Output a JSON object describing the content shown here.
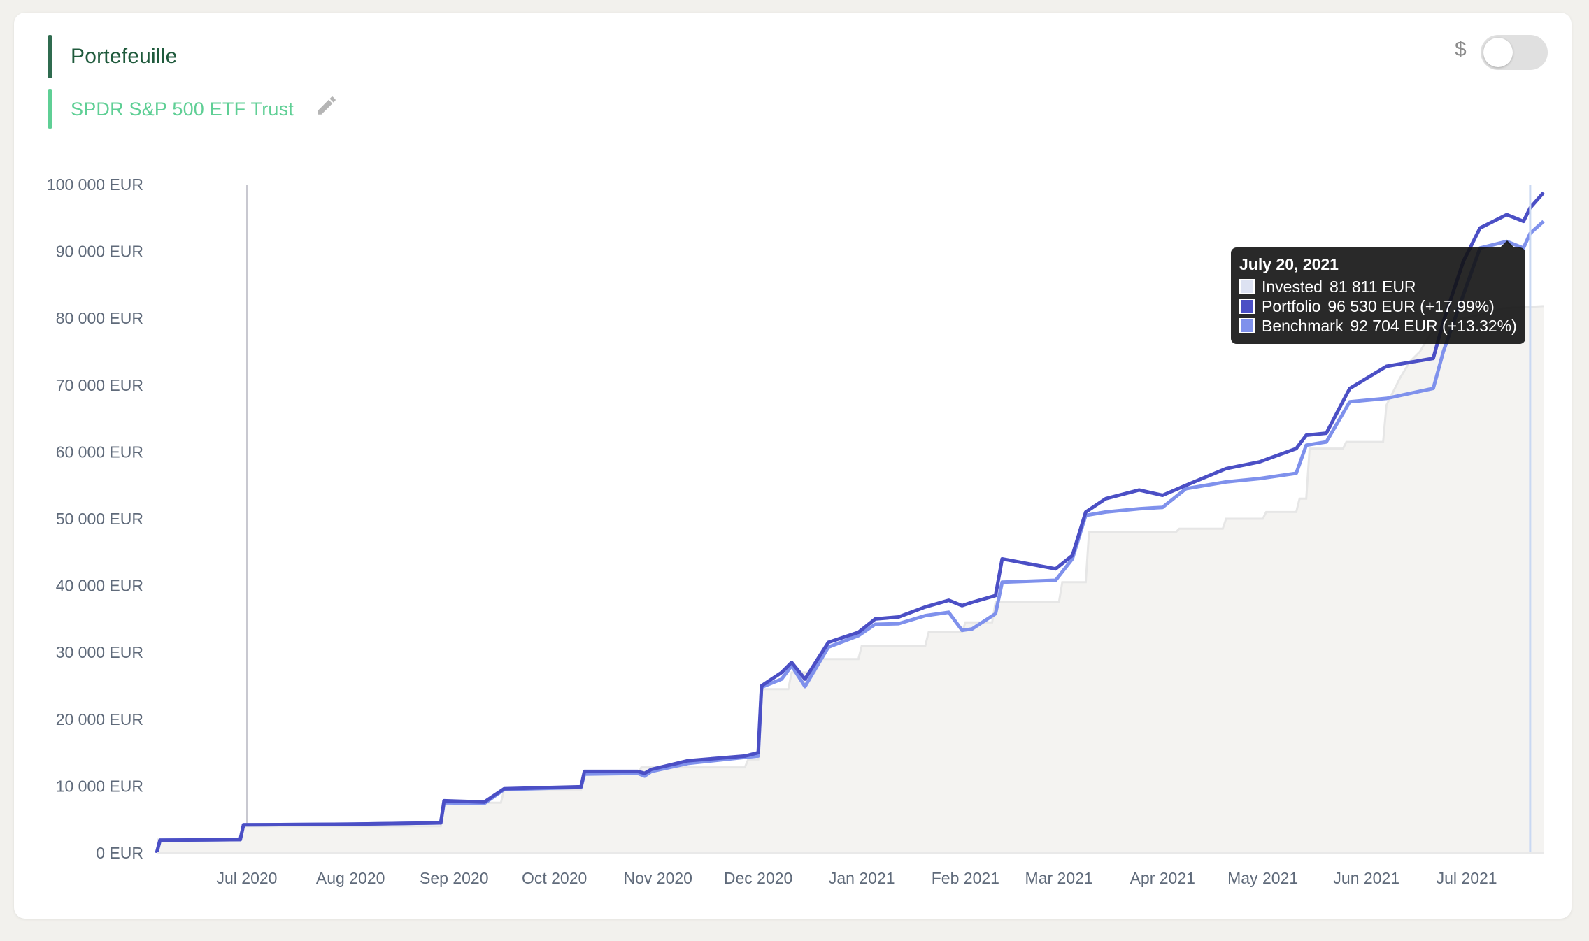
{
  "legend": {
    "portfolio_label": "Portefeuille",
    "benchmark_label": "SPDR S&P 500 ETF Trust",
    "portfolio_color": "#2f6b4f",
    "benchmark_color": "#5fcf95",
    "edit_icon": "pencil-icon"
  },
  "currency_toggle": {
    "symbol": "$",
    "enabled": false
  },
  "tooltip": {
    "date": "July 20, 2021",
    "rows": [
      {
        "name": "Invested",
        "value": "81 811 EUR",
        "color": "#dde2f2"
      },
      {
        "name": "Portfolio",
        "value": "96 530 EUR (+17.99%)",
        "color": "#4b4fc5"
      },
      {
        "name": "Benchmark",
        "value": "92 704 EUR (+13.32%)",
        "color": "#7f91ec"
      }
    ]
  },
  "chart_data": {
    "type": "line",
    "x_type": "date",
    "y_tick_labels": [
      "0 EUR",
      "10 000 EUR",
      "20 000 EUR",
      "30 000 EUR",
      "40 000 EUR",
      "50 000 EUR",
      "60 000 EUR",
      "70 000 EUR",
      "80 000 EUR",
      "90 000 EUR",
      "100 000 EUR"
    ],
    "y_ticks": [
      0,
      10000,
      20000,
      30000,
      40000,
      50000,
      60000,
      70000,
      80000,
      90000,
      100000
    ],
    "ylim": [
      0,
      100000
    ],
    "xlim": [
      "2020-06-04",
      "2021-07-24"
    ],
    "x_ticks": [
      "2020-07-01",
      "2020-08-01",
      "2020-09-01",
      "2020-10-01",
      "2020-11-01",
      "2020-12-01",
      "2021-01-01",
      "2021-02-01",
      "2021-03-01",
      "2021-04-01",
      "2021-05-01",
      "2021-06-01",
      "2021-07-01"
    ],
    "x_tick_labels": [
      "Jul 2020",
      "Aug 2020",
      "Sep 2020",
      "Oct 2020",
      "Nov 2020",
      "Dec 2020",
      "Jan 2021",
      "Feb 2021",
      "Mar 2021",
      "Apr 2021",
      "May 2021",
      "Jun 2021",
      "Jul 2021"
    ],
    "hover_date": "2021-07-20",
    "grid": false,
    "series": [
      {
        "name": "Invested",
        "style": "area",
        "color": "#e6e6e6",
        "fill": "#f4f3f1",
        "points": [
          [
            "2020-06-04",
            2000
          ],
          [
            "2020-06-29",
            2000
          ],
          [
            "2020-06-30",
            4000
          ],
          [
            "2020-08-28",
            4000
          ],
          [
            "2020-08-29",
            7500
          ],
          [
            "2020-09-15",
            7500
          ],
          [
            "2020-09-16",
            9500
          ],
          [
            "2020-10-09",
            9500
          ],
          [
            "2020-10-10",
            11800
          ],
          [
            "2020-10-26",
            11800
          ],
          [
            "2020-10-27",
            12800
          ],
          [
            "2020-11-27",
            12800
          ],
          [
            "2020-11-28",
            14000
          ],
          [
            "2020-12-01",
            14000
          ],
          [
            "2020-12-02",
            24500
          ],
          [
            "2020-12-10",
            24500
          ],
          [
            "2020-12-11",
            27000
          ],
          [
            "2020-12-18",
            27000
          ],
          [
            "2020-12-19",
            29000
          ],
          [
            "2020-12-31",
            29000
          ],
          [
            "2021-01-01",
            31000
          ],
          [
            "2021-01-20",
            31000
          ],
          [
            "2021-01-21",
            33000
          ],
          [
            "2021-01-31",
            33000
          ],
          [
            "2021-02-01",
            34500
          ],
          [
            "2021-02-09",
            34500
          ],
          [
            "2021-02-10",
            37500
          ],
          [
            "2021-03-01",
            37500
          ],
          [
            "2021-03-02",
            40500
          ],
          [
            "2021-03-09",
            40500
          ],
          [
            "2021-03-10",
            48000
          ],
          [
            "2021-04-05",
            48000
          ],
          [
            "2021-04-06",
            48500
          ],
          [
            "2021-04-19",
            48500
          ],
          [
            "2021-04-20",
            50000
          ],
          [
            "2021-05-01",
            50000
          ],
          [
            "2021-05-02",
            51000
          ],
          [
            "2021-05-11",
            51000
          ],
          [
            "2021-05-12",
            53000
          ],
          [
            "2021-05-14",
            53000
          ],
          [
            "2021-05-15",
            60500
          ],
          [
            "2021-05-25",
            60500
          ],
          [
            "2021-05-26",
            61500
          ],
          [
            "2021-06-06",
            61500
          ],
          [
            "2021-06-07",
            67000
          ],
          [
            "2021-06-09",
            69000
          ],
          [
            "2021-06-11",
            71000
          ],
          [
            "2021-06-14",
            73500
          ],
          [
            "2021-06-17",
            75000
          ],
          [
            "2021-06-20",
            77500
          ],
          [
            "2021-06-25",
            79500
          ],
          [
            "2021-07-05",
            80500
          ],
          [
            "2021-07-12",
            81500
          ],
          [
            "2021-07-24",
            81811
          ]
        ]
      },
      {
        "name": "Benchmark",
        "style": "line",
        "color": "#7f91ec",
        "points": [
          [
            "2020-06-04",
            0
          ],
          [
            "2020-06-05",
            1900
          ],
          [
            "2020-06-29",
            2000
          ],
          [
            "2020-06-30",
            4200
          ],
          [
            "2020-07-31",
            4300
          ],
          [
            "2020-08-28",
            4500
          ],
          [
            "2020-08-29",
            7500
          ],
          [
            "2020-09-10",
            7400
          ],
          [
            "2020-09-16",
            9500
          ],
          [
            "2020-10-09",
            9800
          ],
          [
            "2020-10-10",
            11800
          ],
          [
            "2020-10-26",
            11900
          ],
          [
            "2020-10-28",
            11500
          ],
          [
            "2020-10-30",
            12200
          ],
          [
            "2020-11-10",
            13400
          ],
          [
            "2020-11-27",
            14300
          ],
          [
            "2020-12-01",
            14500
          ],
          [
            "2020-12-02",
            24800
          ],
          [
            "2020-12-08",
            26000
          ],
          [
            "2020-12-11",
            28000
          ],
          [
            "2020-12-15",
            24900
          ],
          [
            "2020-12-22",
            30800
          ],
          [
            "2020-12-31",
            32500
          ],
          [
            "2021-01-05",
            34200
          ],
          [
            "2021-01-12",
            34300
          ],
          [
            "2021-01-20",
            35500
          ],
          [
            "2021-01-27",
            36000
          ],
          [
            "2021-01-31",
            33300
          ],
          [
            "2021-02-03",
            33500
          ],
          [
            "2021-02-10",
            35800
          ],
          [
            "2021-02-12",
            40500
          ],
          [
            "2021-02-28",
            40800
          ],
          [
            "2021-03-05",
            44000
          ],
          [
            "2021-03-09",
            50500
          ],
          [
            "2021-03-15",
            51000
          ],
          [
            "2021-03-25",
            51500
          ],
          [
            "2021-04-01",
            51700
          ],
          [
            "2021-04-08",
            54500
          ],
          [
            "2021-04-20",
            55500
          ],
          [
            "2021-04-30",
            56000
          ],
          [
            "2021-05-11",
            56800
          ],
          [
            "2021-05-14",
            61000
          ],
          [
            "2021-05-20",
            61500
          ],
          [
            "2021-05-27",
            67500
          ],
          [
            "2021-06-07",
            68000
          ],
          [
            "2021-06-21",
            69500
          ],
          [
            "2021-06-24",
            75000
          ],
          [
            "2021-06-30",
            83500
          ],
          [
            "2021-07-05",
            90500
          ],
          [
            "2021-07-13",
            91500
          ],
          [
            "2021-07-18",
            90500
          ],
          [
            "2021-07-20",
            92704
          ],
          [
            "2021-07-24",
            94500
          ]
        ]
      },
      {
        "name": "Portfolio",
        "style": "line",
        "color": "#4b4fc5",
        "points": [
          [
            "2020-06-04",
            0
          ],
          [
            "2020-06-05",
            1900
          ],
          [
            "2020-06-29",
            2000
          ],
          [
            "2020-06-30",
            4200
          ],
          [
            "2020-07-31",
            4300
          ],
          [
            "2020-08-28",
            4500
          ],
          [
            "2020-08-29",
            7800
          ],
          [
            "2020-09-10",
            7600
          ],
          [
            "2020-09-16",
            9600
          ],
          [
            "2020-10-09",
            9900
          ],
          [
            "2020-10-10",
            12200
          ],
          [
            "2020-10-26",
            12200
          ],
          [
            "2020-10-28",
            11900
          ],
          [
            "2020-10-30",
            12500
          ],
          [
            "2020-11-10",
            13800
          ],
          [
            "2020-11-27",
            14500
          ],
          [
            "2020-12-01",
            15000
          ],
          [
            "2020-12-02",
            25000
          ],
          [
            "2020-12-08",
            27000
          ],
          [
            "2020-12-11",
            28500
          ],
          [
            "2020-12-15",
            26000
          ],
          [
            "2020-12-22",
            31500
          ],
          [
            "2020-12-31",
            33000
          ],
          [
            "2021-01-05",
            35000
          ],
          [
            "2021-01-12",
            35300
          ],
          [
            "2021-01-20",
            36800
          ],
          [
            "2021-01-27",
            37800
          ],
          [
            "2021-01-31",
            37000
          ],
          [
            "2021-02-03",
            37500
          ],
          [
            "2021-02-10",
            38500
          ],
          [
            "2021-02-12",
            44000
          ],
          [
            "2021-02-28",
            42500
          ],
          [
            "2021-03-05",
            44500
          ],
          [
            "2021-03-09",
            51000
          ],
          [
            "2021-03-15",
            53000
          ],
          [
            "2021-03-25",
            54300
          ],
          [
            "2021-04-01",
            53500
          ],
          [
            "2021-04-08",
            55000
          ],
          [
            "2021-04-20",
            57500
          ],
          [
            "2021-04-30",
            58500
          ],
          [
            "2021-05-11",
            60500
          ],
          [
            "2021-05-14",
            62500
          ],
          [
            "2021-05-20",
            62800
          ],
          [
            "2021-05-27",
            69500
          ],
          [
            "2021-06-07",
            72800
          ],
          [
            "2021-06-21",
            74000
          ],
          [
            "2021-06-24",
            79500
          ],
          [
            "2021-06-30",
            88500
          ],
          [
            "2021-07-05",
            93500
          ],
          [
            "2021-07-13",
            95500
          ],
          [
            "2021-07-18",
            94500
          ],
          [
            "2021-07-20",
            96530
          ],
          [
            "2021-07-24",
            98800
          ]
        ]
      }
    ]
  }
}
